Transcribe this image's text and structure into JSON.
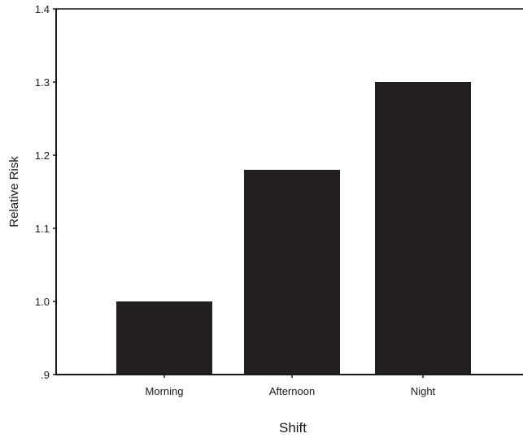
{
  "chart_data": {
    "type": "bar",
    "categories": [
      "Morning",
      "Afternoon",
      "Night"
    ],
    "values": [
      1.0,
      1.18,
      1.3
    ],
    "ylim": [
      0.9,
      1.4
    ],
    "yticks": [
      ".9",
      "1.0",
      "1.1",
      "1.2",
      "1.3",
      "1.4"
    ],
    "xlabel": "Shift",
    "ylabel": "Relative Risk",
    "bar_color": "#231f20",
    "grid": false,
    "legend": "none"
  }
}
